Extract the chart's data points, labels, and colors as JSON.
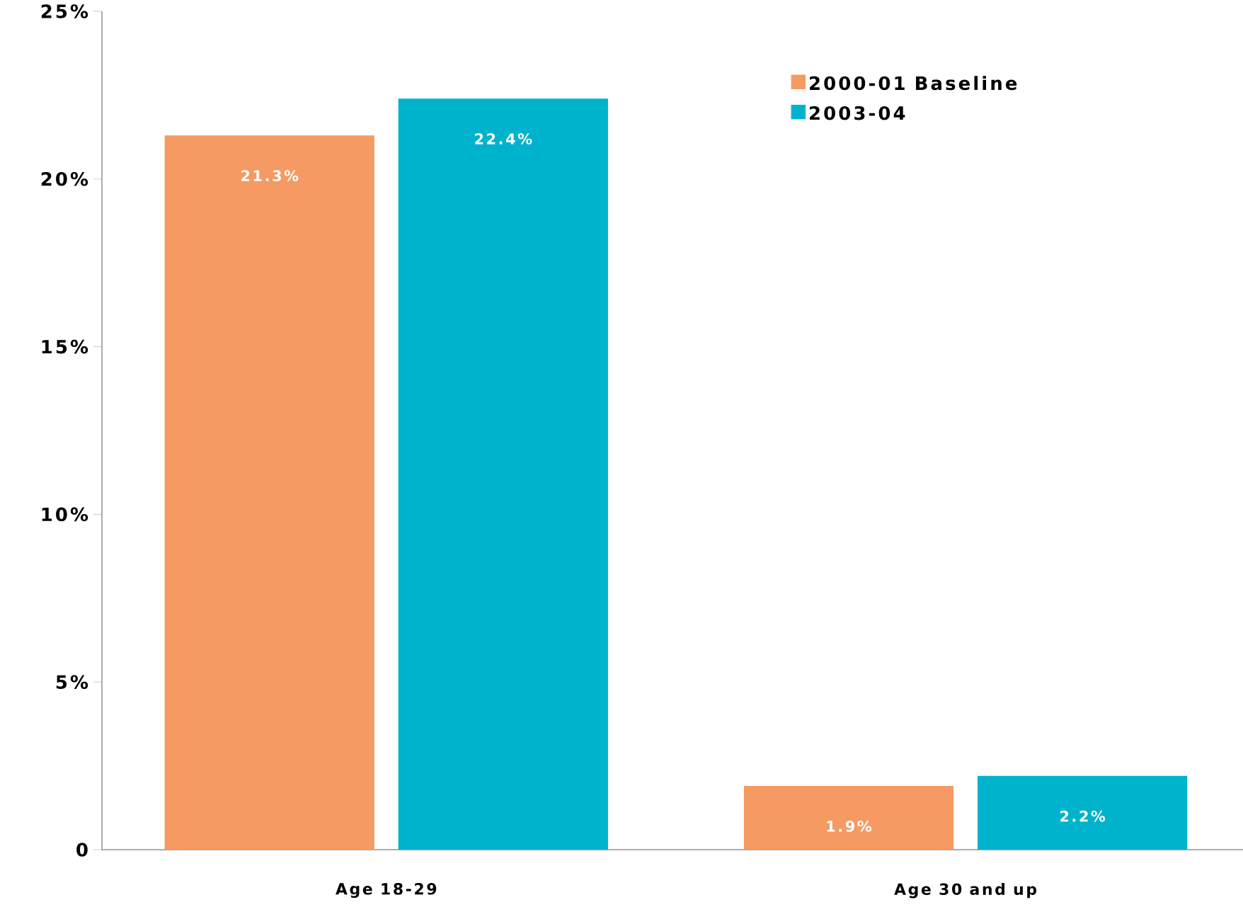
{
  "chart_data": {
    "type": "bar",
    "categories": [
      "Age 18-29",
      "Age 30 and up"
    ],
    "series": [
      {
        "name": "2000-01 Baseline",
        "color": "#f59a62",
        "values": [
          21.3,
          1.9
        ],
        "value_labels": [
          "21.3%",
          "1.9%"
        ]
      },
      {
        "name": "2003-04",
        "color": "#00b3cc",
        "values": [
          22.4,
          2.2
        ],
        "value_labels": [
          "22.4%",
          "2.2%"
        ]
      }
    ],
    "ylim": [
      0,
      25
    ],
    "yticks": [
      0,
      {
        "value": 5,
        "label": "5%"
      },
      {
        "value": 10,
        "label": "10%"
      },
      {
        "value": 15,
        "label": "15%"
      },
      {
        "value": 20,
        "label": "20%"
      },
      {
        "value": 25,
        "label": "25%"
      }
    ],
    "grid": false,
    "legend": "top right"
  }
}
